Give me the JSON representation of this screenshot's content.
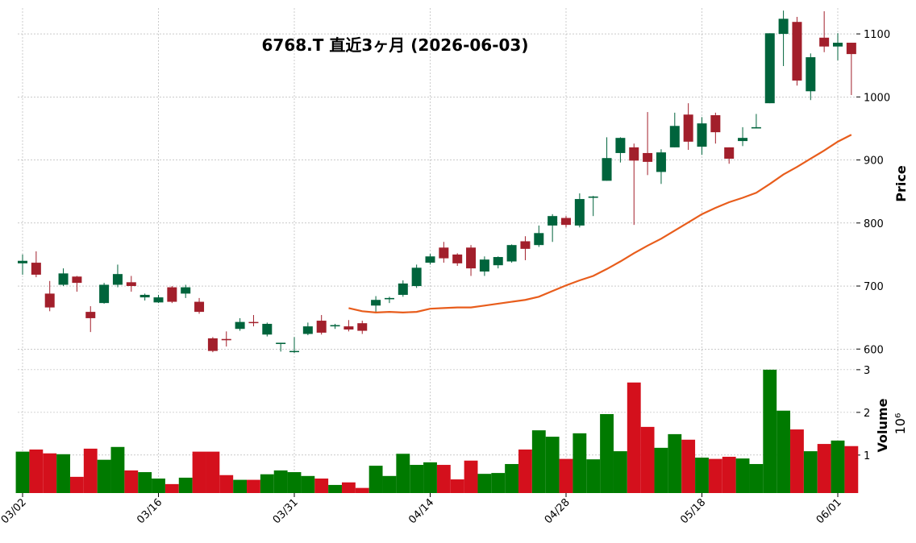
{
  "chart_data": {
    "type": "candlestick",
    "title": "6768.T  直近3ヶ月  (2026-06-03)",
    "y_label": "Price",
    "volume_label": "Volume",
    "volume_unit": "10⁶",
    "categories": [
      "03/02",
      null,
      null,
      null,
      null,
      null,
      null,
      null,
      null,
      null,
      "03/16",
      null,
      null,
      null,
      null,
      null,
      null,
      null,
      null,
      null,
      "03/31",
      null,
      null,
      null,
      null,
      null,
      null,
      null,
      null,
      null,
      "04/14",
      null,
      null,
      null,
      null,
      null,
      null,
      null,
      null,
      null,
      "04/28",
      null,
      null,
      null,
      null,
      null,
      null,
      null,
      null,
      null,
      "05/18",
      null,
      null,
      null,
      null,
      null,
      null,
      null,
      null,
      null,
      "06/01",
      null
    ],
    "open": [
      736,
      737,
      688,
      702,
      715,
      659,
      673,
      702,
      706,
      682,
      674,
      698,
      688,
      675,
      617,
      616,
      632,
      643,
      623,
      608,
      596,
      624,
      645,
      636,
      636,
      641,
      669,
      679,
      686,
      700,
      737,
      761,
      750,
      761,
      723,
      733,
      739,
      771,
      765,
      796,
      808,
      796,
      840,
      867,
      911,
      920,
      911,
      881,
      920,
      972,
      921,
      971,
      920,
      930,
      950,
      990,
      1100,
      1119,
      1009,
      1094,
      1080,
      1086
    ],
    "high": [
      750,
      755,
      708,
      728,
      716,
      668,
      705,
      734,
      716,
      688,
      686,
      700,
      702,
      681,
      619,
      628,
      649,
      654,
      642,
      610,
      619,
      642,
      654,
      640,
      646,
      645,
      684,
      683,
      709,
      734,
      751,
      770,
      752,
      765,
      747,
      747,
      766,
      779,
      796,
      814,
      811,
      847,
      843,
      936,
      936,
      926,
      976,
      917,
      975,
      990,
      968,
      975,
      920,
      952,
      973,
      1101,
      1137,
      1127,
      1069,
      1136,
      1101,
      1086
    ],
    "low": [
      718,
      714,
      660,
      700,
      691,
      627,
      672,
      698,
      691,
      677,
      673,
      673,
      681,
      656,
      595,
      604,
      629,
      636,
      620,
      596,
      594,
      622,
      623,
      632,
      628,
      624,
      657,
      673,
      683,
      697,
      734,
      737,
      732,
      716,
      716,
      728,
      737,
      741,
      762,
      770,
      793,
      793,
      811,
      867,
      896,
      797,
      876,
      862,
      920,
      916,
      908,
      926,
      894,
      922,
      950,
      990,
      1049,
      1018,
      995,
      1071,
      1058,
      1003
    ],
    "close": [
      740,
      718,
      666,
      720,
      705,
      649,
      702,
      719,
      700,
      686,
      682,
      675,
      698,
      659,
      597,
      614,
      643,
      642,
      640,
      610,
      597,
      636,
      626,
      638,
      631,
      629,
      678,
      681,
      704,
      729,
      747,
      744,
      736,
      728,
      742,
      746,
      765,
      759,
      784,
      811,
      797,
      838,
      842,
      903,
      935,
      899,
      897,
      912,
      954,
      929,
      958,
      944,
      902,
      935,
      952,
      1101,
      1124,
      1026,
      1063,
      1080,
      1086,
      1068
    ],
    "volume": [
      1.08,
      1.13,
      1.04,
      1.02,
      0.49,
      1.15,
      0.89,
      1.19,
      0.64,
      0.6,
      0.45,
      0.32,
      0.47,
      1.08,
      1.08,
      0.53,
      0.42,
      0.42,
      0.55,
      0.64,
      0.6,
      0.51,
      0.45,
      0.3,
      0.36,
      0.23,
      0.75,
      0.51,
      1.03,
      0.77,
      0.83,
      0.77,
      0.43,
      0.87,
      0.56,
      0.58,
      0.79,
      1.13,
      1.58,
      1.43,
      0.91,
      1.51,
      0.9,
      1.96,
      1.09,
      2.7,
      1.66,
      1.17,
      1.49,
      1.36,
      0.94,
      0.91,
      0.96,
      0.92,
      0.79,
      3.0,
      2.04,
      1.6,
      1.09,
      1.26,
      1.34,
      1.21
    ],
    "moving_average": [
      null,
      null,
      null,
      null,
      null,
      null,
      null,
      null,
      null,
      null,
      null,
      null,
      null,
      null,
      null,
      null,
      null,
      null,
      null,
      null,
      null,
      null,
      null,
      null,
      665,
      660,
      658,
      659,
      658,
      659,
      664,
      665,
      666,
      666,
      669,
      672,
      675,
      678,
      683,
      692,
      701,
      709,
      716,
      727,
      739,
      752,
      764,
      775,
      788,
      801,
      814,
      824,
      833,
      840,
      848,
      862,
      877,
      889,
      902,
      915,
      929,
      940
    ],
    "up_color": "#00643c",
    "down_color": "#a21f2b",
    "volume_up_color": "#007a00",
    "volume_down_color": "#d4101c",
    "ma_color": "#e85d1c",
    "ylim": [
      585,
      1141
    ],
    "yticks": [
      600,
      700,
      800,
      900,
      1000,
      1100
    ],
    "volume_ylim": [
      0.11,
      3.13
    ],
    "volume_yticks": [
      1,
      2,
      3
    ],
    "grid": true
  }
}
